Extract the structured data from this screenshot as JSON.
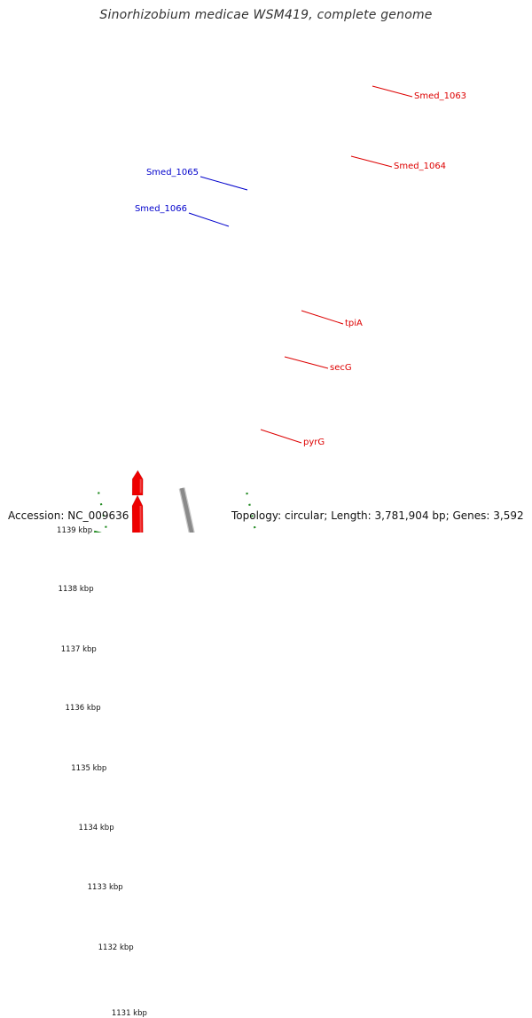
{
  "title": "Sinorhizobium medicae WSM419, complete genome",
  "footer": {
    "accession": "Accession: NC_009636",
    "summary": "Topology: circular; Length: 3,781,904 bp; Genes: 3,592"
  },
  "ticks": [
    {
      "label": "1131 kbp"
    },
    {
      "label": "1132 kbp"
    },
    {
      "label": "1133 kbp"
    },
    {
      "label": "1134 kbp"
    },
    {
      "label": "1135 kbp"
    },
    {
      "label": "1136 kbp"
    },
    {
      "label": "1137 kbp"
    },
    {
      "label": "1138 kbp"
    },
    {
      "label": "1139 kbp"
    }
  ],
  "gene_labels": [
    {
      "text": "Smed_1063",
      "color": "#dd0000"
    },
    {
      "text": "Smed_1064",
      "color": "#dd0000"
    },
    {
      "text": "Smed_1065",
      "color": "#0000cc"
    },
    {
      "text": "Smed_1066",
      "color": "#0000cc"
    },
    {
      "text": "tpiA",
      "color": "#dd0000"
    },
    {
      "text": "secG",
      "color": "#dd0000"
    },
    {
      "text": "pyrG",
      "color": "#dd0000"
    }
  ],
  "colors": {
    "backbone": "#8a8a8a",
    "dotted_track": "#228b22",
    "cds_red": "#ee0000",
    "cds_blue": "#0000ee",
    "cds_gray": "#777777",
    "cds_cyan": "#00eeee",
    "cds_teal": "#20c0c0",
    "cds_skyblue": "#1ec0ff",
    "cds_green": "#a6e832",
    "cds_pink": "#ee55bb",
    "cds_lavender": "#ccccff"
  }
}
